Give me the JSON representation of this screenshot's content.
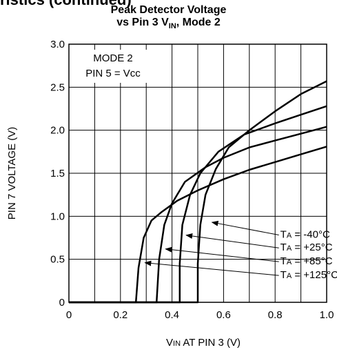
{
  "page": {
    "header": "ristics (continued)"
  },
  "chart_data": {
    "type": "line",
    "title": "Peak Detector Voltage",
    "subtitle_main": "vs Pin 3 V",
    "subtitle_sub": "IN",
    "subtitle_tail": ", Mode 2",
    "xlabel_main": "V",
    "xlabel_sub": "IN",
    "xlabel_tail": " AT PIN 3 (V)",
    "ylabel": "PIN 7 VOLTAGE (V)",
    "xlim": [
      0,
      1.0
    ],
    "ylim": [
      0,
      3.0
    ],
    "x_ticks": [
      0,
      0.2,
      0.4,
      0.6,
      0.8,
      1.0
    ],
    "x_tick_labels": [
      "0",
      "0.2",
      "0.4",
      "0.6",
      "0.8",
      "1.0"
    ],
    "y_ticks": [
      0,
      0.5,
      1.0,
      1.5,
      2.0,
      2.5,
      3.0
    ],
    "y_tick_labels": [
      "0",
      "0.5",
      "1.0",
      "1.5",
      "2.0",
      "2.5",
      "3.0"
    ],
    "grid": true,
    "conditions": [
      "MODE 2",
      "PIN 5 = Vcc"
    ],
    "series": [
      {
        "name": "TA = -40°C",
        "label_main": "T",
        "label_sub": "A",
        "label_tail": " = -40°C",
        "points": [
          [
            0,
            0
          ],
          [
            0.5,
            0
          ],
          [
            0.5,
            0.45
          ],
          [
            0.51,
            0.9
          ],
          [
            0.53,
            1.25
          ],
          [
            0.57,
            1.55
          ],
          [
            0.62,
            1.8
          ],
          [
            0.7,
            2.0
          ],
          [
            0.8,
            2.22
          ],
          [
            0.9,
            2.42
          ],
          [
            1.0,
            2.57
          ]
        ]
      },
      {
        "name": "TA = +25°C",
        "label_main": "T",
        "label_sub": "A",
        "label_tail": " = +25°C",
        "points": [
          [
            0,
            0
          ],
          [
            0.43,
            0
          ],
          [
            0.43,
            0.45
          ],
          [
            0.44,
            0.9
          ],
          [
            0.47,
            1.25
          ],
          [
            0.51,
            1.5
          ],
          [
            0.58,
            1.75
          ],
          [
            0.68,
            1.95
          ],
          [
            0.8,
            2.08
          ],
          [
            0.9,
            2.18
          ],
          [
            1.0,
            2.28
          ]
        ]
      },
      {
        "name": "TA = +85°C",
        "label_main": "T",
        "label_sub": "A",
        "label_tail": " = +85°C",
        "points": [
          [
            0,
            0
          ],
          [
            0.34,
            0
          ],
          [
            0.35,
            0.5
          ],
          [
            0.37,
            0.9
          ],
          [
            0.4,
            1.15
          ],
          [
            0.45,
            1.4
          ],
          [
            0.53,
            1.57
          ],
          [
            0.6,
            1.68
          ],
          [
            0.7,
            1.8
          ],
          [
            0.8,
            1.88
          ],
          [
            0.9,
            1.96
          ],
          [
            1.0,
            2.04
          ]
        ]
      },
      {
        "name": "TA = +125°C",
        "label_main": "T",
        "label_sub": "A",
        "label_tail": " = +125°C",
        "points": [
          [
            0,
            0
          ],
          [
            0.26,
            0
          ],
          [
            0.27,
            0.4
          ],
          [
            0.29,
            0.75
          ],
          [
            0.32,
            0.95
          ],
          [
            0.36,
            1.05
          ],
          [
            0.42,
            1.18
          ],
          [
            0.5,
            1.3
          ],
          [
            0.6,
            1.43
          ],
          [
            0.7,
            1.54
          ],
          [
            0.8,
            1.63
          ],
          [
            0.9,
            1.72
          ],
          [
            1.0,
            1.81
          ]
        ]
      }
    ],
    "annotation_order": [
      0,
      1,
      2,
      3
    ]
  }
}
